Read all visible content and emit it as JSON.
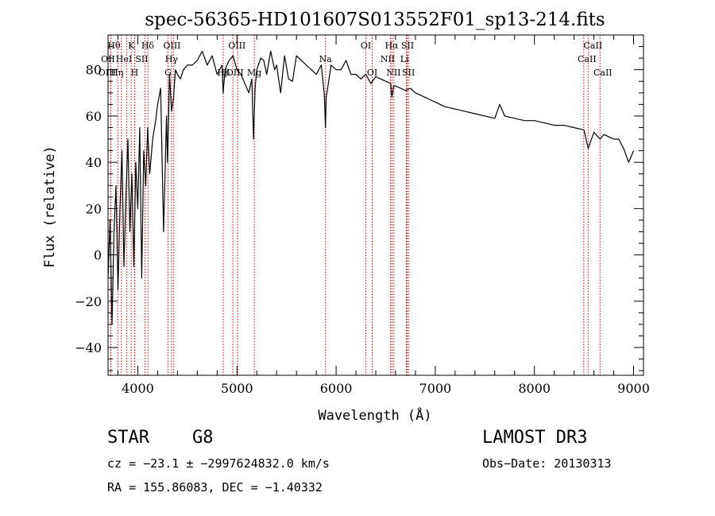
{
  "chart_data": {
    "type": "line",
    "title": "spec-56365-HD101607S013552F01_sp13-214.fits",
    "xlabel": "Wavelength (Å)",
    "ylabel": "Flux (relative)",
    "xlim": [
      3700,
      9100
    ],
    "ylim": [
      -52,
      95
    ],
    "xticks": [
      4000,
      5000,
      6000,
      7000,
      8000,
      9000
    ],
    "yticks": [
      -40,
      -20,
      0,
      20,
      40,
      60,
      80
    ],
    "series": [
      {
        "name": "flux",
        "x": [
          3700,
          3720,
          3740,
          3760,
          3780,
          3800,
          3820,
          3840,
          3860,
          3880,
          3900,
          3920,
          3940,
          3960,
          3980,
          4000,
          4020,
          4040,
          4060,
          4080,
          4100,
          4120,
          4150,
          4180,
          4200,
          4230,
          4260,
          4290,
          4300,
          4320,
          4340,
          4360,
          4380,
          4400,
          4430,
          4460,
          4500,
          4550,
          4600,
          4650,
          4700,
          4750,
          4800,
          4850,
          4861,
          4880,
          4920,
          4960,
          5000,
          5040,
          5080,
          5120,
          5150,
          5167,
          5183,
          5200,
          5240,
          5270,
          5300,
          5340,
          5380,
          5400,
          5440,
          5480,
          5520,
          5560,
          5600,
          5650,
          5700,
          5750,
          5800,
          5850,
          5880,
          5893,
          5900,
          5950,
          6000,
          6050,
          6100,
          6150,
          6200,
          6250,
          6300,
          6350,
          6400,
          6450,
          6500,
          6550,
          6563,
          6580,
          6600,
          6650,
          6700,
          6750,
          6800,
          6850,
          6900,
          6950,
          7000,
          7100,
          7200,
          7300,
          7400,
          7500,
          7600,
          7650,
          7700,
          7800,
          7900,
          8000,
          8100,
          8200,
          8300,
          8400,
          8500,
          8542,
          8600,
          8662,
          8700,
          8750,
          8800,
          8850,
          8900,
          8950,
          9000
        ],
        "values": [
          -10,
          15,
          -30,
          10,
          30,
          -15,
          20,
          45,
          -5,
          25,
          50,
          10,
          35,
          -5,
          40,
          20,
          55,
          -10,
          45,
          30,
          55,
          35,
          50,
          58,
          65,
          72,
          10,
          60,
          40,
          78,
          62,
          68,
          80,
          78,
          76,
          80,
          82,
          82,
          84,
          88,
          82,
          86,
          78,
          82,
          70,
          80,
          84,
          86,
          80,
          78,
          74,
          70,
          76,
          50,
          72,
          80,
          85,
          84,
          78,
          88,
          80,
          82,
          70,
          86,
          76,
          75,
          86,
          84,
          82,
          80,
          78,
          82,
          70,
          55,
          68,
          82,
          80,
          80,
          84,
          78,
          78,
          76,
          78,
          74,
          77,
          76,
          75,
          74,
          68,
          73,
          73,
          72,
          71,
          72,
          70,
          69,
          68,
          67,
          66,
          64,
          63,
          62,
          61,
          60,
          59,
          65,
          60,
          59,
          58,
          58,
          57,
          56,
          56,
          55,
          54,
          46,
          53,
          50,
          52,
          51,
          50,
          50,
          46,
          40,
          45
        ]
      }
    ],
    "lines": [
      {
        "label": "Hθ",
        "wavelength": 3798
      },
      {
        "label": "OII",
        "wavelength": 3727
      },
      {
        "label": "OII",
        "wavelength": 3729
      },
      {
        "label": "Hη",
        "wavelength": 3835
      },
      {
        "label": "HeI",
        "wavelength": 3889
      },
      {
        "label": "Hε",
        "wavelength": 3970
      },
      {
        "label": "K",
        "wavelength": 3934
      },
      {
        "label": "SII",
        "wavelength": 4072
      },
      {
        "label": "H",
        "wavelength": 3968
      },
      {
        "label": "Hδ",
        "wavelength": 4102
      },
      {
        "label": "OIII",
        "wavelength": 4363
      },
      {
        "label": "Hγ",
        "wavelength": 4340
      },
      {
        "label": "G",
        "wavelength": 4305
      },
      {
        "label": "Hβ",
        "wavelength": 4861
      },
      {
        "label": "OIII",
        "wavelength": 5007
      },
      {
        "label": "OIII",
        "wavelength": 4959
      },
      {
        "label": "Mg",
        "wavelength": 5175
      },
      {
        "label": "Na",
        "wavelength": 5893
      },
      {
        "label": "OI",
        "wavelength": 6300
      },
      {
        "label": "OI",
        "wavelength": 6364
      },
      {
        "label": "Hα",
        "wavelength": 6563
      },
      {
        "label": "NII",
        "wavelength": 6548
      },
      {
        "label": "NII",
        "wavelength": 6583
      },
      {
        "label": "SII",
        "wavelength": 6716
      },
      {
        "label": "SII",
        "wavelength": 6731
      },
      {
        "label": "Li",
        "wavelength": 6708
      },
      {
        "label": "CaII",
        "wavelength": 8498
      },
      {
        "label": "CaII",
        "wavelength": 8542
      },
      {
        "label": "CaII",
        "wavelength": 8662
      }
    ],
    "line_labels": [
      {
        "text": "Hθ",
        "row": 1,
        "wavelength": 3760
      },
      {
        "text": "K",
        "row": 1,
        "wavelength": 3934
      },
      {
        "text": "Hδ",
        "row": 1,
        "wavelength": 4100
      },
      {
        "text": "OIII",
        "row": 1,
        "wavelength": 4345
      },
      {
        "text": "OIII",
        "row": 1,
        "wavelength": 5000
      },
      {
        "text": "OI",
        "row": 1,
        "wavelength": 6300
      },
      {
        "text": "Hα",
        "row": 1,
        "wavelength": 6560
      },
      {
        "text": "SII",
        "row": 1,
        "wavelength": 6720
      },
      {
        "text": "CaII",
        "row": 1,
        "wavelength": 8590
      },
      {
        "text": "OII",
        "row": 2,
        "wavelength": 3700
      },
      {
        "text": "HeI",
        "row": 2,
        "wavelength": 3860
      },
      {
        "text": "SII",
        "row": 2,
        "wavelength": 4040
      },
      {
        "text": "Hγ",
        "row": 2,
        "wavelength": 4340
      },
      {
        "text": "Na",
        "row": 2,
        "wavelength": 5893
      },
      {
        "text": "NII",
        "row": 2,
        "wavelength": 6520
      },
      {
        "text": "Li",
        "row": 2,
        "wavelength": 6690
      },
      {
        "text": "CaII",
        "row": 2,
        "wavelength": 8530
      },
      {
        "text": "OIII",
        "row": 3,
        "wavelength": 3690
      },
      {
        "text": "Hη",
        "row": 3,
        "wavelength": 3790
      },
      {
        "text": "H",
        "row": 3,
        "wavelength": 3968
      },
      {
        "text": "G",
        "row": 3,
        "wavelength": 4305
      },
      {
        "text": "Hβ",
        "row": 3,
        "wavelength": 4865
      },
      {
        "text": "OIII",
        "row": 3,
        "wavelength": 4980
      },
      {
        "text": "Mg",
        "row": 3,
        "wavelength": 5175
      },
      {
        "text": "OI",
        "row": 3,
        "wavelength": 6364
      },
      {
        "text": "NII",
        "row": 3,
        "wavelength": 6580
      },
      {
        "text": "SII",
        "row": 3,
        "wavelength": 6730
      },
      {
        "text": "CaII",
        "row": 3,
        "wavelength": 8690
      }
    ]
  },
  "info": {
    "object_type": "STAR",
    "subclass": "G8",
    "survey": "LAMOST DR3",
    "cz": "cz = −23.1 ± −2997624832.0 km/s",
    "obs_date": "Obs−Date: 20130313",
    "radec": "RA = 155.86083, DEC =  −1.40332"
  },
  "colors": {
    "spectrum": "#000000",
    "line_marker": "#cc0000",
    "axis": "#000000",
    "background": "#ffffff"
  }
}
